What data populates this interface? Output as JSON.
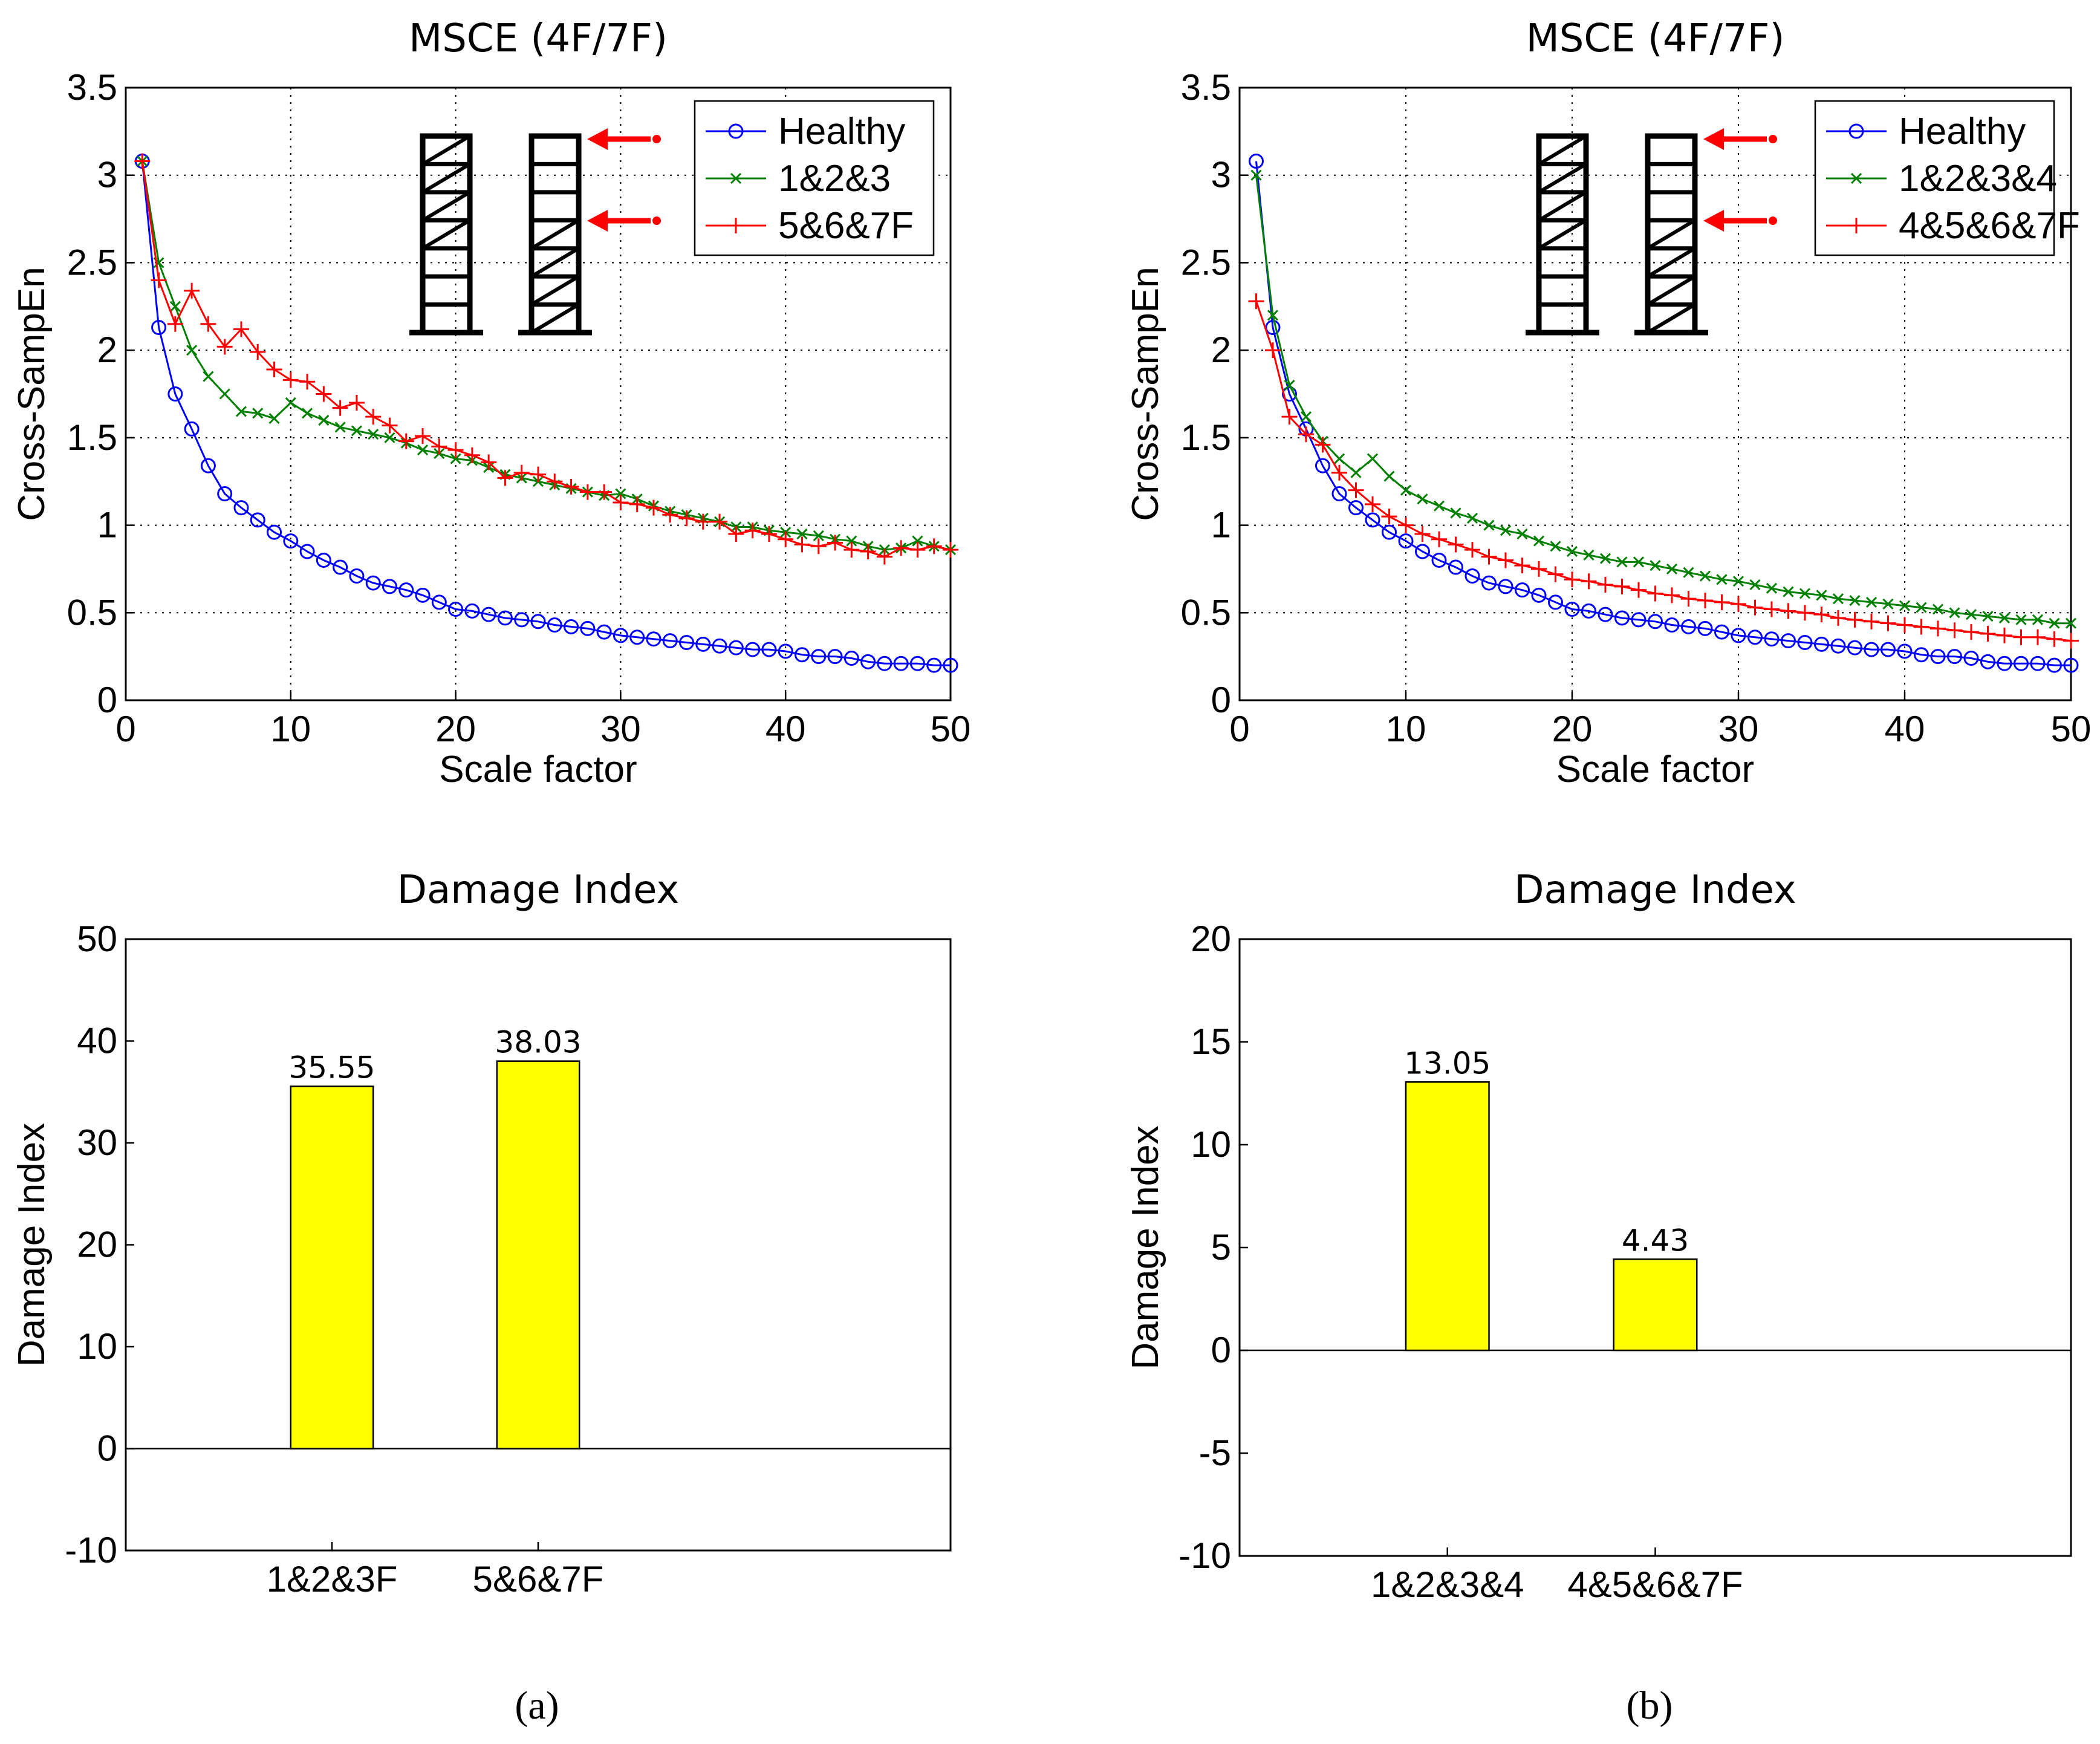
{
  "chart_data": [
    {
      "id": "a-line",
      "type": "line",
      "title": "MSCE (4F/7F)",
      "xlabel": "Scale factor",
      "ylabel": "Cross-SampEn",
      "xlim": [
        0,
        50
      ],
      "ylim": [
        0,
        3.5
      ],
      "xticks": [
        "0",
        "10",
        "20",
        "30",
        "40",
        "50"
      ],
      "yticks": [
        "0",
        "0.5",
        "1",
        "1.5",
        "2",
        "2.5",
        "3",
        "3.5"
      ],
      "grid": true,
      "legend_position": "top-right",
      "x": [
        1,
        2,
        3,
        4,
        5,
        6,
        7,
        8,
        9,
        10,
        11,
        12,
        13,
        14,
        15,
        16,
        17,
        18,
        19,
        20,
        21,
        22,
        23,
        24,
        25,
        26,
        27,
        28,
        29,
        30,
        31,
        32,
        33,
        34,
        35,
        36,
        37,
        38,
        39,
        40,
        41,
        42,
        43,
        44,
        45,
        46,
        47,
        48,
        49,
        50
      ],
      "series": [
        {
          "name": "Healthy",
          "color": "#0000ff",
          "marker": "circle",
          "values": [
            3.08,
            2.13,
            1.75,
            1.55,
            1.34,
            1.18,
            1.1,
            1.03,
            0.96,
            0.91,
            0.85,
            0.8,
            0.76,
            0.71,
            0.67,
            0.65,
            0.63,
            0.6,
            0.56,
            0.52,
            0.51,
            0.49,
            0.47,
            0.46,
            0.45,
            0.43,
            0.42,
            0.41,
            0.39,
            0.37,
            0.36,
            0.35,
            0.34,
            0.33,
            0.32,
            0.31,
            0.3,
            0.29,
            0.29,
            0.28,
            0.26,
            0.25,
            0.25,
            0.24,
            0.22,
            0.21,
            0.21,
            0.21,
            0.2,
            0.2
          ]
        },
        {
          "name": "1&2&3",
          "color": "#008000",
          "marker": "x",
          "values": [
            3.08,
            2.5,
            2.25,
            2.0,
            1.85,
            1.75,
            1.65,
            1.64,
            1.61,
            1.7,
            1.64,
            1.6,
            1.56,
            1.54,
            1.52,
            1.5,
            1.47,
            1.43,
            1.41,
            1.38,
            1.37,
            1.33,
            1.29,
            1.27,
            1.25,
            1.23,
            1.21,
            1.19,
            1.17,
            1.18,
            1.15,
            1.11,
            1.08,
            1.06,
            1.04,
            1.02,
            0.99,
            0.99,
            0.97,
            0.96,
            0.95,
            0.94,
            0.92,
            0.91,
            0.88,
            0.86,
            0.87,
            0.91,
            0.88,
            0.86
          ]
        },
        {
          "name": "5&6&7F",
          "color": "#ff0000",
          "marker": "plus",
          "values": [
            3.08,
            2.4,
            2.15,
            2.34,
            2.15,
            2.02,
            2.12,
            1.99,
            1.89,
            1.83,
            1.82,
            1.75,
            1.67,
            1.7,
            1.62,
            1.57,
            1.48,
            1.51,
            1.45,
            1.43,
            1.4,
            1.36,
            1.27,
            1.3,
            1.29,
            1.25,
            1.22,
            1.19,
            1.19,
            1.13,
            1.12,
            1.1,
            1.06,
            1.04,
            1.02,
            1.02,
            0.95,
            0.97,
            0.95,
            0.92,
            0.89,
            0.88,
            0.9,
            0.86,
            0.85,
            0.82,
            0.87,
            0.86,
            0.88,
            0.86
          ]
        }
      ],
      "inset": "two seven-storey frame sketches with red arrows at upper floors"
    },
    {
      "id": "b-line",
      "type": "line",
      "title": "MSCE (4F/7F)",
      "xlabel": "Scale factor",
      "ylabel": "Cross-SampEn",
      "xlim": [
        0,
        50
      ],
      "ylim": [
        0,
        3.5
      ],
      "xticks": [
        "0",
        "10",
        "20",
        "30",
        "40",
        "50"
      ],
      "yticks": [
        "0",
        "0.5",
        "1",
        "1.5",
        "2",
        "2.5",
        "3",
        "3.5"
      ],
      "grid": true,
      "legend_position": "top-right",
      "x": [
        1,
        2,
        3,
        4,
        5,
        6,
        7,
        8,
        9,
        10,
        11,
        12,
        13,
        14,
        15,
        16,
        17,
        18,
        19,
        20,
        21,
        22,
        23,
        24,
        25,
        26,
        27,
        28,
        29,
        30,
        31,
        32,
        33,
        34,
        35,
        36,
        37,
        38,
        39,
        40,
        41,
        42,
        43,
        44,
        45,
        46,
        47,
        48,
        49,
        50
      ],
      "series": [
        {
          "name": "Healthy",
          "color": "#0000ff",
          "marker": "circle",
          "values": [
            3.08,
            2.13,
            1.75,
            1.55,
            1.34,
            1.18,
            1.1,
            1.03,
            0.96,
            0.91,
            0.85,
            0.8,
            0.76,
            0.71,
            0.67,
            0.65,
            0.63,
            0.6,
            0.56,
            0.52,
            0.51,
            0.49,
            0.47,
            0.46,
            0.45,
            0.43,
            0.42,
            0.41,
            0.39,
            0.37,
            0.36,
            0.35,
            0.34,
            0.33,
            0.32,
            0.31,
            0.3,
            0.29,
            0.29,
            0.28,
            0.26,
            0.25,
            0.25,
            0.24,
            0.22,
            0.21,
            0.21,
            0.21,
            0.2,
            0.2
          ]
        },
        {
          "name": "1&2&3&4",
          "color": "#008000",
          "marker": "x",
          "values": [
            3.0,
            2.2,
            1.8,
            1.62,
            1.48,
            1.38,
            1.3,
            1.38,
            1.28,
            1.2,
            1.15,
            1.11,
            1.07,
            1.04,
            1.0,
            0.97,
            0.95,
            0.91,
            0.88,
            0.85,
            0.83,
            0.81,
            0.79,
            0.79,
            0.77,
            0.75,
            0.73,
            0.71,
            0.69,
            0.68,
            0.66,
            0.64,
            0.62,
            0.61,
            0.6,
            0.58,
            0.57,
            0.56,
            0.55,
            0.54,
            0.53,
            0.52,
            0.5,
            0.49,
            0.48,
            0.47,
            0.46,
            0.46,
            0.44,
            0.44
          ]
        },
        {
          "name": "4&5&6&7F",
          "color": "#ff0000",
          "marker": "plus",
          "values": [
            2.28,
            2.0,
            1.62,
            1.52,
            1.46,
            1.3,
            1.2,
            1.12,
            1.05,
            1.0,
            0.95,
            0.92,
            0.89,
            0.86,
            0.82,
            0.8,
            0.77,
            0.75,
            0.72,
            0.69,
            0.68,
            0.66,
            0.65,
            0.63,
            0.61,
            0.6,
            0.58,
            0.57,
            0.56,
            0.55,
            0.53,
            0.52,
            0.51,
            0.5,
            0.49,
            0.47,
            0.46,
            0.45,
            0.44,
            0.43,
            0.42,
            0.41,
            0.4,
            0.39,
            0.38,
            0.37,
            0.36,
            0.36,
            0.35,
            0.34
          ]
        }
      ],
      "inset": "two seven-storey frame sketches with red arrows at upper floors"
    },
    {
      "id": "a-bar",
      "type": "bar",
      "title": "Damage Index",
      "xlabel": "",
      "ylabel": "Damage Index",
      "ylim": [
        -10,
        50
      ],
      "yticks": [
        "-10",
        "0",
        "10",
        "20",
        "30",
        "40",
        "50"
      ],
      "grid": false,
      "categories": [
        "1&2&3F",
        "5&6&7F"
      ],
      "values": [
        35.55,
        38.03
      ],
      "value_labels": [
        "35.55",
        "38.03"
      ],
      "bar_color": "#ffff00"
    },
    {
      "id": "b-bar",
      "type": "bar",
      "title": "Damage Index",
      "xlabel": "",
      "ylabel": "Damage Index",
      "ylim": [
        -10,
        20
      ],
      "yticks": [
        "-10",
        "-5",
        "0",
        "5",
        "10",
        "15",
        "20"
      ],
      "grid": false,
      "categories": [
        "1&2&3&4",
        "4&5&6&7F"
      ],
      "values": [
        13.05,
        4.43
      ],
      "value_labels": [
        "13.05",
        "4.43"
      ],
      "bar_color": "#ffff00"
    }
  ],
  "captions": {
    "a": "(a)",
    "b": "(b)"
  }
}
